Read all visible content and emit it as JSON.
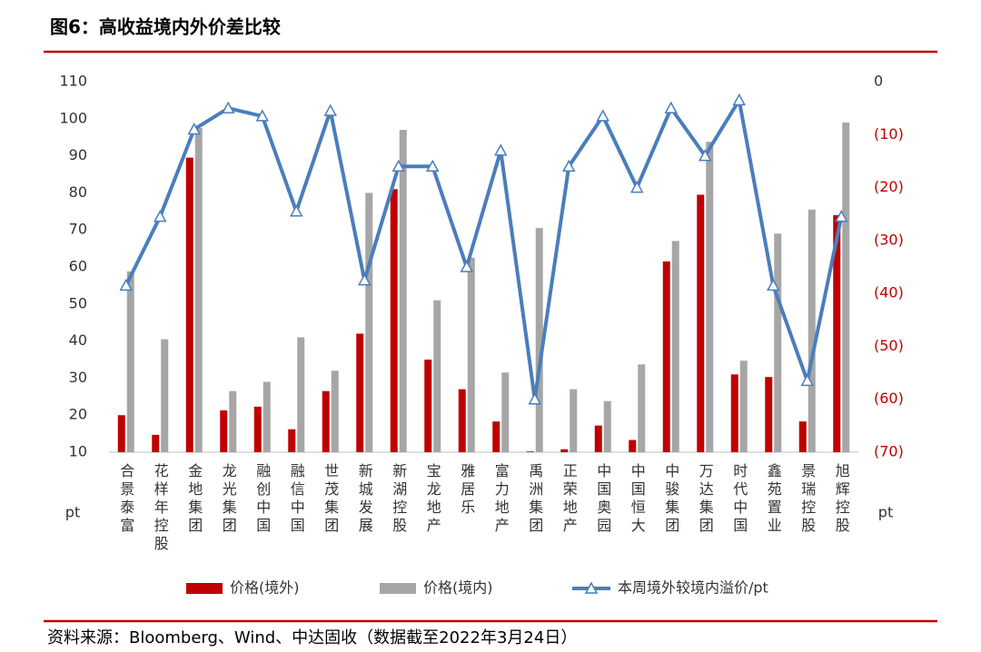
{
  "chart_data": {
    "type": "bar_line",
    "title": "图6：高收益境内外价差比较",
    "source": "资料来源：Bloomberg、Wind、中达固收（数据截至2022年3月24日）",
    "ylabel": "pt",
    "y2label": "pt",
    "categories": [
      "合景泰富",
      "花样年控股",
      "金地集团",
      "龙光集团",
      "融创中国",
      "融信中国",
      "世茂集团",
      "新城发展",
      "新湖控股",
      "宝龙地产",
      "雅居乐",
      "富力地产",
      "禹洲集团",
      "正荣地产",
      "中国奥园",
      "中国恒大",
      "中骏集团",
      "万达集团",
      "时代中国",
      "鑫苑置业",
      "景瑞控股",
      "旭辉控股"
    ],
    "series": [
      {
        "name": "价格(境外)",
        "type": "bar",
        "color": "#c00000",
        "values": [
          20,
          14.7,
          89.5,
          21.3,
          22.3,
          16.2,
          26.5,
          42,
          81,
          35,
          27,
          18.3,
          10.2,
          10.8,
          17.2,
          13.3,
          61.5,
          79.5,
          31,
          30.3,
          18.3,
          74
        ]
      },
      {
        "name": "价格(境内)",
        "type": "bar",
        "color": "#a6a6a6",
        "values": [
          58.8,
          40.5,
          97.5,
          26.5,
          29,
          41,
          32,
          80,
          97,
          51,
          62.5,
          31.5,
          70.5,
          27,
          23.8,
          33.7,
          67,
          93.8,
          34.7,
          69,
          75.5,
          99
        ]
      },
      {
        "name": "本周境外较境内溢价/pt",
        "type": "line",
        "axis": "y2",
        "color": "#4a7ebb",
        "values": [
          -38.5,
          -25.5,
          -9,
          -5,
          -6.5,
          -24.5,
          -5.5,
          -37.5,
          -16,
          -16,
          -35,
          -13,
          -60,
          -16,
          -6.5,
          -20,
          -5,
          -14,
          -3.5,
          -38.5,
          -56.5,
          -25.5
        ]
      }
    ],
    "ylim": [
      10,
      110
    ],
    "yticks": [
      10,
      20,
      30,
      40,
      50,
      60,
      70,
      80,
      90,
      100,
      110
    ],
    "y2lim": [
      -70,
      0
    ],
    "y2ticks": [
      0,
      {
        "value": -10,
        "label": "(10)"
      },
      {
        "value": -20,
        "label": "(20)"
      },
      {
        "value": -30,
        "label": "(30)"
      },
      {
        "value": -40,
        "label": "(40)"
      },
      {
        "value": -50,
        "label": "(50)"
      },
      {
        "value": -60,
        "label": "(60)"
      },
      {
        "value": -70,
        "label": "(70)"
      }
    ],
    "negative_label_color": "#c00000"
  }
}
